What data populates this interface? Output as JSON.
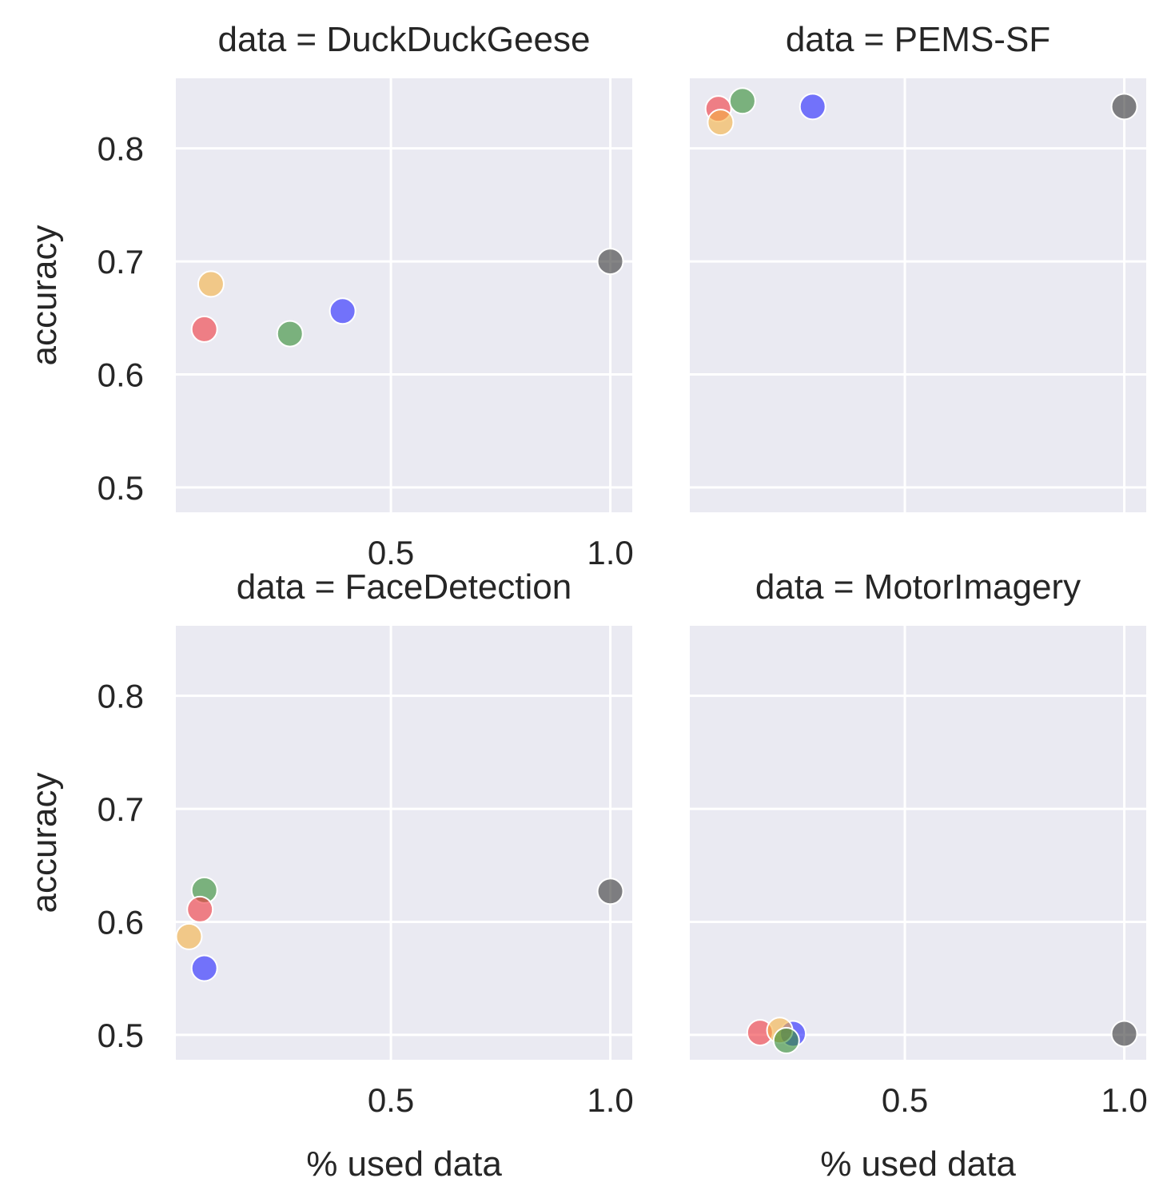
{
  "chart_data": [
    {
      "type": "scatter",
      "title": "data = DuckDuckGeese",
      "xlabel": "",
      "ylabel": "accuracy",
      "xlim": [
        0.01,
        1.05
      ],
      "ylim": [
        0.478,
        0.862
      ],
      "xticks": [
        0.5,
        1.0
      ],
      "xtick_labels": [
        "0.5",
        "1.0"
      ],
      "yticks": [
        0.5,
        0.6,
        0.7,
        0.8
      ],
      "ytick_labels": [
        "0.5",
        "0.6",
        "0.7",
        "0.8"
      ],
      "grid": true,
      "points": [
        {
          "x": 0.09,
          "y": 0.68,
          "color": "#f5b041"
        },
        {
          "x": 0.075,
          "y": 0.64,
          "color": "#f0363c"
        },
        {
          "x": 0.27,
          "y": 0.636,
          "color": "#2e8b2e"
        },
        {
          "x": 0.39,
          "y": 0.656,
          "color": "#2222ff"
        },
        {
          "x": 1.0,
          "y": 0.7,
          "color": "#333333"
        }
      ]
    },
    {
      "type": "scatter",
      "title": "data = PEMS-SF",
      "xlabel": "",
      "ylabel": "",
      "xlim": [
        0.01,
        1.05
      ],
      "ylim": [
        0.478,
        0.862
      ],
      "xticks": [
        0.5,
        1.0
      ],
      "xtick_labels": [],
      "yticks": [
        0.5,
        0.6,
        0.7,
        0.8
      ],
      "ytick_labels": [],
      "grid": true,
      "points": [
        {
          "x": 0.075,
          "y": 0.835,
          "color": "#f0363c"
        },
        {
          "x": 0.13,
          "y": 0.842,
          "color": "#2e8b2e"
        },
        {
          "x": 0.08,
          "y": 0.823,
          "color": "#f5b041"
        },
        {
          "x": 0.29,
          "y": 0.837,
          "color": "#2222ff"
        },
        {
          "x": 1.0,
          "y": 0.837,
          "color": "#333333"
        }
      ]
    },
    {
      "type": "scatter",
      "title": "data = FaceDetection",
      "xlabel": "% used data",
      "ylabel": "accuracy",
      "xlim": [
        0.01,
        1.05
      ],
      "ylim": [
        0.478,
        0.862
      ],
      "xticks": [
        0.5,
        1.0
      ],
      "xtick_labels": [
        "0.5",
        "1.0"
      ],
      "yticks": [
        0.5,
        0.6,
        0.7,
        0.8
      ],
      "ytick_labels": [
        "0.5",
        "0.6",
        "0.7",
        "0.8"
      ],
      "grid": true,
      "points": [
        {
          "x": 0.075,
          "y": 0.628,
          "color": "#2e8b2e"
        },
        {
          "x": 0.065,
          "y": 0.611,
          "color": "#f0363c"
        },
        {
          "x": 0.04,
          "y": 0.587,
          "color": "#f5b041"
        },
        {
          "x": 0.075,
          "y": 0.559,
          "color": "#2222ff"
        },
        {
          "x": 1.0,
          "y": 0.627,
          "color": "#333333"
        }
      ]
    },
    {
      "type": "scatter",
      "title": "data = MotorImagery",
      "xlabel": "% used data",
      "ylabel": "",
      "xlim": [
        0.01,
        1.05
      ],
      "ylim": [
        0.478,
        0.862
      ],
      "xticks": [
        0.5,
        1.0
      ],
      "xtick_labels": [
        "0.5",
        "1.0"
      ],
      "yticks": [
        0.5,
        0.6,
        0.7,
        0.8
      ],
      "ytick_labels": [],
      "grid": true,
      "points": [
        {
          "x": 0.17,
          "y": 0.502,
          "color": "#f0363c"
        },
        {
          "x": 0.245,
          "y": 0.501,
          "color": "#2222ff"
        },
        {
          "x": 0.215,
          "y": 0.504,
          "color": "#f5b041"
        },
        {
          "x": 0.23,
          "y": 0.495,
          "color": "#2e8b2e"
        },
        {
          "x": 1.0,
          "y": 0.501,
          "color": "#333333"
        }
      ]
    }
  ]
}
